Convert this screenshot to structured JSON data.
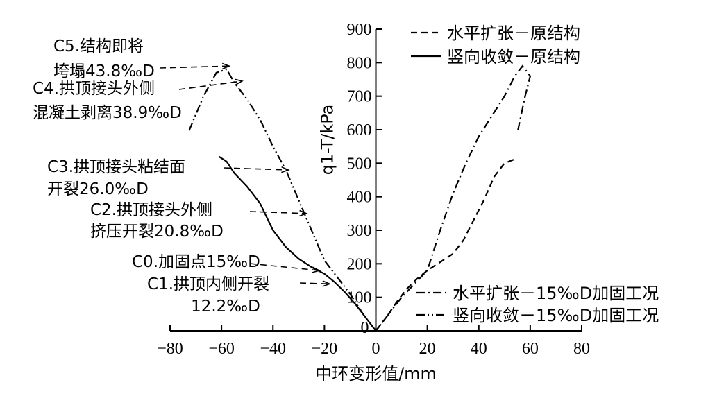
{
  "chart_data": {
    "type": "line",
    "xlabel": "中环变形值/mm",
    "ylabel": "q1-T/kPa",
    "xlim": [
      -80,
      80
    ],
    "ylim": [
      0,
      900
    ],
    "xticks": [
      -80,
      -60,
      -40,
      -20,
      0,
      20,
      40,
      60,
      80
    ],
    "yticks": [
      100,
      200,
      300,
      400,
      500,
      600,
      700,
      800,
      900
    ],
    "xtick_labels": [
      "−80",
      "−60",
      "−40",
      "−20",
      "0",
      "20",
      "40",
      "60",
      "80"
    ],
    "ytick_labels": [
      "100",
      "200",
      "300",
      "400",
      "500",
      "600",
      "700",
      "800",
      "900"
    ],
    "y_zero_label": "0",
    "legend": [
      {
        "name": "水平扩张－原结构",
        "style": "dashed"
      },
      {
        "name": "竖向收敛－原结构",
        "style": "solid"
      },
      {
        "name": "水平扩张－15‰D加固工况",
        "style": "dashdot"
      },
      {
        "name": "竖向收敛－15‰D加固工况",
        "style": "dashdotdot"
      }
    ],
    "series": [
      {
        "name": "水平扩张－原结构",
        "style": "dashed",
        "x": [
          0,
          4,
          8,
          12,
          16,
          20,
          25,
          30,
          34,
          38,
          42,
          46,
          50,
          55
        ],
        "y": [
          0,
          40,
          85,
          125,
          155,
          180,
          205,
          230,
          270,
          330,
          390,
          460,
          500,
          515
        ]
      },
      {
        "name": "竖向收敛－原结构",
        "style": "solid",
        "x": [
          0,
          -4,
          -8,
          -12,
          -16,
          -20,
          -25,
          -30,
          -35,
          -40,
          -45,
          -50,
          -55,
          -58,
          -61
        ],
        "y": [
          0,
          40,
          80,
          115,
          145,
          170,
          190,
          215,
          250,
          300,
          380,
          430,
          470,
          505,
          520
        ]
      },
      {
        "name": "水平扩张－15‰D加固工况",
        "style": "dashdot",
        "x": [
          0,
          5,
          10,
          15,
          20,
          25,
          30,
          35,
          40,
          45,
          50,
          54,
          57,
          60,
          58,
          55
        ],
        "y": [
          0,
          50,
          100,
          140,
          180,
          300,
          410,
          500,
          580,
          640,
          700,
          760,
          790,
          760,
          700,
          590
        ]
      },
      {
        "name": "竖向收敛－15‰D加固工况",
        "style": "dashdotdot",
        "x": [
          0,
          -5,
          -10,
          -15,
          -20,
          -25,
          -30,
          -35,
          -40,
          -45,
          -50,
          -55,
          -58,
          -62,
          -67,
          -73
        ],
        "y": [
          0,
          50,
          110,
          160,
          210,
          300,
          390,
          480,
          550,
          630,
          690,
          740,
          780,
          770,
          700,
          590
        ]
      }
    ],
    "annotations": [
      {
        "lines": [
          "C5.结构即将",
          "垮塌43.8‰D"
        ]
      },
      {
        "lines": [
          "C4.拱顶接头外侧",
          "混凝土剥离38.9‰D"
        ]
      },
      {
        "lines": [
          "C3.拱顶接头粘结面",
          "开裂26.0‰D"
        ]
      },
      {
        "lines": [
          "C2.拱顶接头外侧",
          "挤压开裂20.8‰D"
        ]
      },
      {
        "lines": [
          "C0.加固点15‰D"
        ]
      },
      {
        "lines": [
          "C1.拱顶内侧开裂",
          "12.2‰D"
        ]
      }
    ]
  }
}
